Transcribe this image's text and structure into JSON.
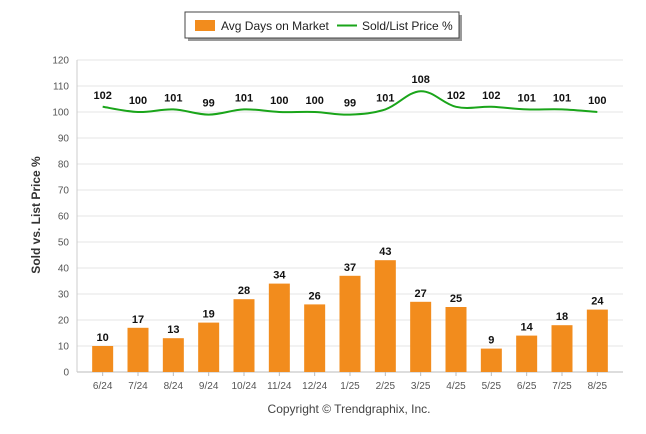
{
  "chart_data": {
    "type": "bar",
    "categories": [
      "6/24",
      "7/24",
      "8/24",
      "9/24",
      "10/24",
      "11/24",
      "12/24",
      "1/25",
      "2/25",
      "3/25",
      "4/25",
      "5/25",
      "6/25",
      "7/25",
      "8/25"
    ],
    "series": [
      {
        "name": "Avg Days on Market",
        "type": "bar",
        "color": "#f28c1d",
        "values": [
          10,
          17,
          13,
          19,
          28,
          34,
          26,
          37,
          43,
          27,
          25,
          9,
          14,
          18,
          24
        ]
      },
      {
        "name": "Sold/List Price %",
        "type": "line",
        "color": "#1aa51a",
        "values": [
          102,
          100,
          101,
          99,
          101,
          100,
          100,
          99,
          101,
          108,
          102,
          102,
          101,
          101,
          100
        ]
      }
    ],
    "ylabel": "Sold vs. List Price %",
    "xlabel": "",
    "ylim": [
      0,
      120
    ],
    "yticks": [
      0,
      10,
      20,
      30,
      40,
      50,
      60,
      70,
      80,
      90,
      100,
      110,
      120
    ],
    "grid": true,
    "legend_position": "top-center"
  },
  "credit": "Copyright © Trendgraphix, Inc."
}
